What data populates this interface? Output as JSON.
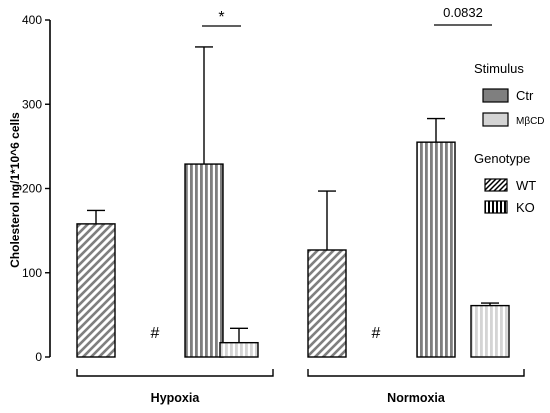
{
  "chart_data": {
    "type": "bar",
    "ylabel": "Cholesterol ng/1*10^6 cells",
    "ylim": [
      0,
      400
    ],
    "yticks": [
      0,
      100,
      200,
      300,
      400
    ],
    "groups": [
      {
        "label": "Hypoxia",
        "bars": [
          {
            "stimulus": "Ctr",
            "genotype": "WT",
            "value": 158,
            "error": 16,
            "not_detected": false
          },
          {
            "stimulus": "MβCD",
            "genotype": "WT",
            "value": 0,
            "error": 0,
            "not_detected": true,
            "marker": "#"
          },
          {
            "stimulus": "Ctr",
            "genotype": "KO",
            "value": 229,
            "error": 139,
            "not_detected": false
          },
          {
            "stimulus": "MβCD",
            "genotype": "KO",
            "value": 17,
            "error": 17,
            "not_detected": false
          }
        ],
        "comparison": {
          "from_bar": 2,
          "to_bar": 3,
          "label": "*"
        }
      },
      {
        "label": "Normoxia",
        "bars": [
          {
            "stimulus": "Ctr",
            "genotype": "WT",
            "value": 127,
            "error": 70,
            "not_detected": false
          },
          {
            "stimulus": "MβCD",
            "genotype": "WT",
            "value": 0,
            "error": 0,
            "not_detected": true,
            "marker": "#"
          },
          {
            "stimulus": "Ctr",
            "genotype": "KO",
            "value": 255,
            "error": 28,
            "not_detected": false
          },
          {
            "stimulus": "MβCD",
            "genotype": "KO",
            "value": 61,
            "error": 3,
            "not_detected": false
          }
        ],
        "comparison": {
          "from_bar": 2,
          "to_bar": 3,
          "label": "0.0832"
        }
      }
    ],
    "legend": {
      "placement": "right",
      "stimulus_title": "Stimulus",
      "stimulus": [
        {
          "name": "Ctr",
          "color": "#7f7f7f"
        },
        {
          "name": "MβCD",
          "color": "#d4d4d4"
        }
      ],
      "genotype_title": "Genotype",
      "genotype": [
        {
          "name": "WT",
          "pattern": "diagonal-stripes"
        },
        {
          "name": "KO",
          "pattern": "vertical-stripes"
        }
      ]
    }
  }
}
